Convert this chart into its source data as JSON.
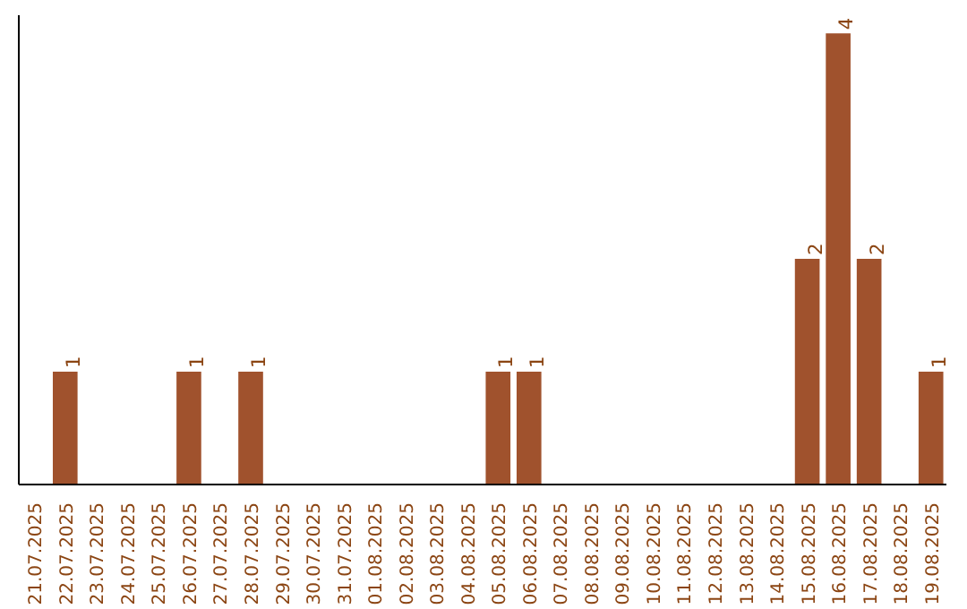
{
  "chart_data": {
    "type": "bar",
    "categories": [
      "21.07.2025",
      "22.07.2025",
      "23.07.2025",
      "24.07.2025",
      "25.07.2025",
      "26.07.2025",
      "27.07.2025",
      "28.07.2025",
      "29.07.2025",
      "30.07.2025",
      "31.07.2025",
      "01.08.2025",
      "02.08.2025",
      "03.08.2025",
      "04.08.2025",
      "05.08.2025",
      "06.08.2025",
      "07.08.2025",
      "08.08.2025",
      "09.08.2025",
      "10.08.2025",
      "11.08.2025",
      "12.08.2025",
      "13.08.2025",
      "14.08.2025",
      "15.08.2025",
      "16.08.2025",
      "17.08.2025",
      "18.08.2025",
      "19.08.2025"
    ],
    "values": [
      0,
      1,
      0,
      0,
      0,
      1,
      0,
      1,
      0,
      0,
      0,
      0,
      0,
      0,
      0,
      1,
      1,
      0,
      0,
      0,
      0,
      0,
      0,
      0,
      0,
      2,
      4,
      2,
      0,
      1
    ],
    "value_labels": [
      null,
      "1",
      null,
      null,
      null,
      "1",
      null,
      "1",
      null,
      null,
      null,
      null,
      null,
      null,
      null,
      "1",
      "1",
      null,
      null,
      null,
      null,
      null,
      null,
      null,
      null,
      "2",
      "4",
      "2",
      null,
      "1"
    ],
    "color": "#a0522d",
    "ylim": [
      0,
      4.16
    ],
    "tick_labels": "x",
    "grid": false
  }
}
